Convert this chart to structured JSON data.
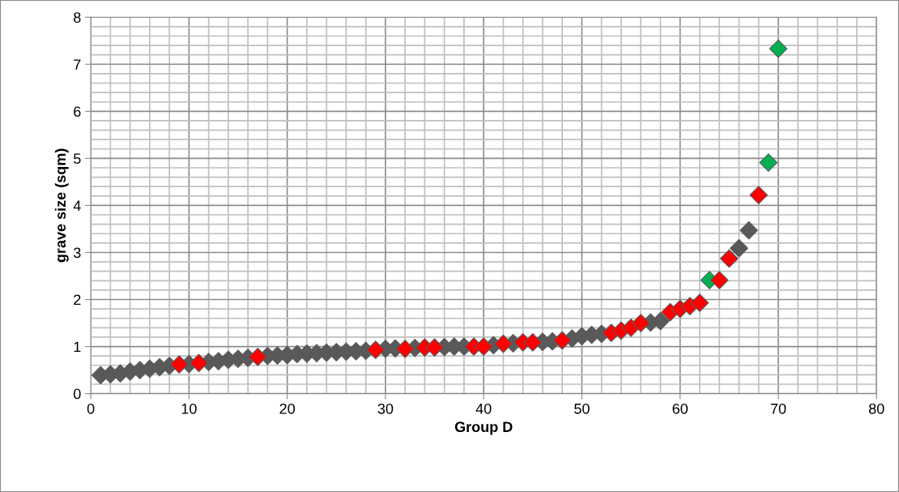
{
  "chart_data": {
    "type": "scatter",
    "xlabel": "Group D",
    "ylabel": "grave size (sqm)",
    "x": [
      1,
      2,
      3,
      4,
      5,
      6,
      7,
      8,
      9,
      10,
      11,
      12,
      13,
      14,
      15,
      16,
      17,
      18,
      19,
      20,
      21,
      22,
      23,
      24,
      25,
      26,
      27,
      28,
      29,
      30,
      31,
      32,
      33,
      34,
      35,
      36,
      37,
      38,
      39,
      40,
      41,
      42,
      43,
      44,
      45,
      46,
      47,
      48,
      49,
      50,
      51,
      52,
      53,
      54,
      55,
      56,
      57,
      58,
      59,
      60,
      61,
      62,
      63,
      64,
      65,
      66,
      67,
      68,
      69,
      70
    ],
    "series": [
      {
        "values": [
          0.39,
          0.41,
          0.43,
          0.47,
          0.5,
          0.53,
          0.56,
          0.59,
          0.62,
          0.63,
          0.65,
          0.67,
          0.69,
          0.72,
          0.74,
          0.76,
          0.78,
          0.8,
          0.81,
          0.82,
          0.84,
          0.85,
          0.86,
          0.87,
          0.88,
          0.89,
          0.9,
          0.91,
          0.93,
          0.95,
          0.96,
          0.95,
          0.97,
          0.98,
          0.98,
          0.99,
          1.0,
          1.0,
          1.0,
          1.0,
          1.03,
          1.06,
          1.07,
          1.09,
          1.09,
          1.1,
          1.11,
          1.13,
          1.17,
          1.22,
          1.25,
          1.27,
          1.29,
          1.34,
          1.4,
          1.5,
          1.51,
          1.54,
          1.73,
          1.8,
          1.86,
          1.93,
          2.41,
          2.41,
          2.87,
          3.09,
          3.47,
          4.22,
          4.91,
          7.33
        ],
        "colors": [
          "#595959",
          "#595959",
          "#595959",
          "#595959",
          "#595959",
          "#595959",
          "#595959",
          "#595959",
          "#ff0000",
          "#595959",
          "#ff0000",
          "#595959",
          "#595959",
          "#595959",
          "#595959",
          "#595959",
          "#ff0000",
          "#595959",
          "#595959",
          "#595959",
          "#595959",
          "#595959",
          "#595959",
          "#595959",
          "#595959",
          "#595959",
          "#595959",
          "#595959",
          "#ff0000",
          "#595959",
          "#595959",
          "#ff0000",
          "#595959",
          "#ff0000",
          "#ff0000",
          "#595959",
          "#595959",
          "#595959",
          "#ff0000",
          "#ff0000",
          "#595959",
          "#ff0000",
          "#595959",
          "#ff0000",
          "#ff0000",
          "#595959",
          "#595959",
          "#ff0000",
          "#595959",
          "#595959",
          "#595959",
          "#595959",
          "#ff0000",
          "#ff0000",
          "#ff0000",
          "#ff0000",
          "#595959",
          "#595959",
          "#ff0000",
          "#ff0000",
          "#ff0000",
          "#ff0000",
          "#00b050",
          "#ff0000",
          "#ff0000",
          "#595959",
          "#595959",
          "#ff0000",
          "#00b050",
          "#00b050"
        ]
      }
    ],
    "xlim": [
      0,
      80
    ],
    "ylim": [
      0,
      8
    ],
    "xticks": [
      0,
      {
        "value": 2,
        "label": null
      },
      {
        "value": 4,
        "label": null
      },
      {
        "value": 6,
        "label": null
      },
      {
        "value": 8,
        "label": null
      },
      10,
      {
        "value": 12,
        "label": null
      },
      {
        "value": 14,
        "label": null
      },
      {
        "value": 16,
        "label": null
      },
      {
        "value": 18,
        "label": null
      },
      20,
      {
        "value": 22,
        "label": null
      },
      {
        "value": 24,
        "label": null
      },
      {
        "value": 26,
        "label": null
      },
      {
        "value": 28,
        "label": null
      },
      30,
      {
        "value": 32,
        "label": null
      },
      {
        "value": 34,
        "label": null
      },
      {
        "value": 36,
        "label": null
      },
      {
        "value": 38,
        "label": null
      },
      40,
      {
        "value": 42,
        "label": null
      },
      {
        "value": 44,
        "label": null
      },
      {
        "value": 46,
        "label": null
      },
      {
        "value": 48,
        "label": null
      },
      50,
      {
        "value": 52,
        "label": null
      },
      {
        "value": 54,
        "label": null
      },
      {
        "value": 56,
        "label": null
      },
      {
        "value": 58,
        "label": null
      },
      60,
      {
        "value": 62,
        "label": null
      },
      {
        "value": 64,
        "label": null
      },
      {
        "value": 66,
        "label": null
      },
      {
        "value": 68,
        "label": null
      },
      70,
      {
        "value": 72,
        "label": null
      },
      {
        "value": 74,
        "label": null
      },
      {
        "value": 76,
        "label": null
      },
      {
        "value": 78,
        "label": null
      },
      80
    ],
    "yticks": [
      0,
      {
        "value": 0.2,
        "label": null
      },
      {
        "value": 0.4,
        "label": null
      },
      {
        "value": 0.6,
        "label": null
      },
      {
        "value": 0.8,
        "label": null
      },
      1,
      {
        "value": 1.2,
        "label": null
      },
      {
        "value": 1.4,
        "label": null
      },
      {
        "value": 1.6,
        "label": null
      },
      {
        "value": 1.8,
        "label": null
      },
      2,
      {
        "value": 2.2,
        "label": null
      },
      {
        "value": 2.4,
        "label": null
      },
      {
        "value": 2.6,
        "label": null
      },
      {
        "value": 2.8,
        "label": null
      },
      3,
      {
        "value": 3.2,
        "label": null
      },
      {
        "value": 3.4,
        "label": null
      },
      {
        "value": 3.6,
        "label": null
      },
      {
        "value": 3.8,
        "label": null
      },
      4,
      {
        "value": 4.2,
        "label": null
      },
      {
        "value": 4.4,
        "label": null
      },
      {
        "value": 4.6,
        "label": null
      },
      {
        "value": 4.8,
        "label": null
      },
      5,
      {
        "value": 5.2,
        "label": null
      },
      {
        "value": 5.4,
        "label": null
      },
      {
        "value": 5.6,
        "label": null
      },
      {
        "value": 5.8,
        "label": null
      },
      6,
      {
        "value": 6.2,
        "label": null
      },
      {
        "value": 6.4,
        "label": null
      },
      {
        "value": 6.6,
        "label": null
      },
      {
        "value": 6.8,
        "label": null
      },
      7,
      {
        "value": 7.2,
        "label": null
      },
      {
        "value": 7.4,
        "label": null
      },
      {
        "value": 7.6,
        "label": null
      },
      {
        "value": 7.8,
        "label": null
      },
      8
    ],
    "grid": true,
    "marker": "diamond"
  }
}
